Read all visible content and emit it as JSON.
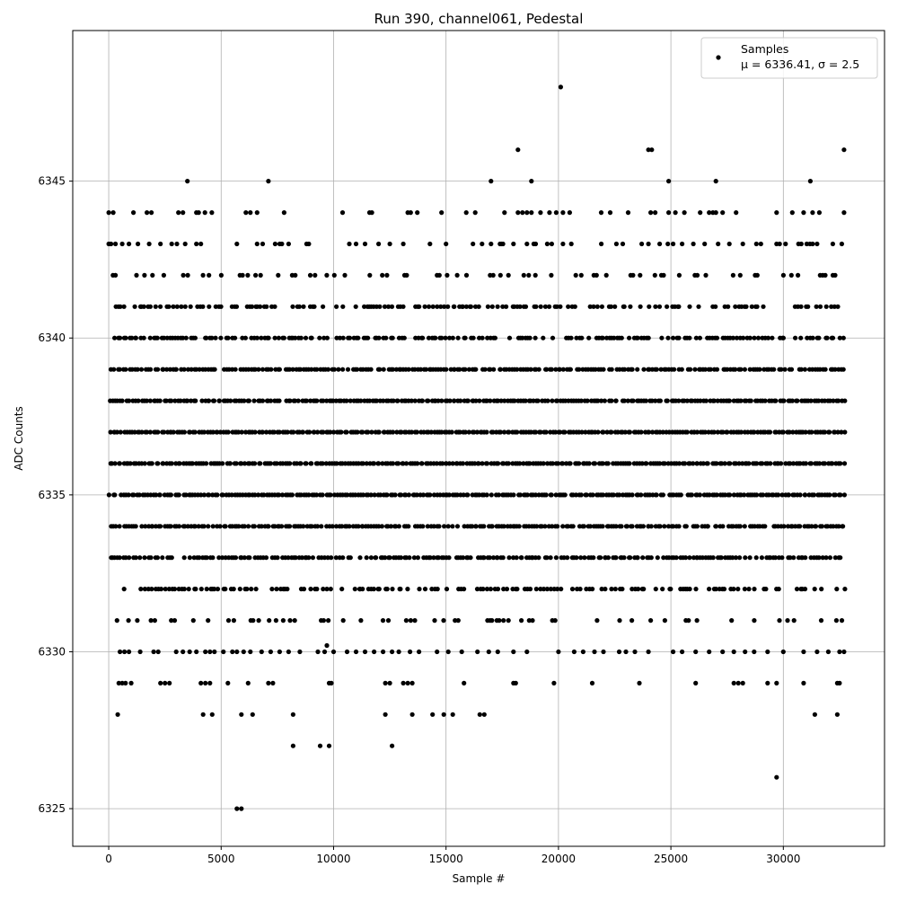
{
  "chart_data": {
    "type": "scatter",
    "title": "Run 390, channel061, Pedestal",
    "xlabel": "Sample #",
    "ylabel": "ADC Counts",
    "xlim": [
      -1600,
      34500
    ],
    "ylim": [
      6323.8,
      6349.8
    ],
    "xticks": [
      0,
      5000,
      10000,
      15000,
      20000,
      25000,
      30000
    ],
    "yticks": [
      6325,
      6330,
      6335,
      6340,
      6345
    ],
    "xtick_labels": [
      "0",
      "5000",
      "10000",
      "15000",
      "20000",
      "25000",
      "30000"
    ],
    "ytick_labels": [
      "6325",
      "6330",
      "6335",
      "6340",
      "6345"
    ],
    "grid": true,
    "legend_position": "top-right",
    "legend": {
      "label": "Samples",
      "stats": "μ = 6336.41, σ = 2.5"
    },
    "marker_color": "#000000",
    "sample_count": 32768,
    "level_coverage": [
      {
        "value": 6331,
        "density": 0.22
      },
      {
        "value": 6332,
        "density": 0.55
      },
      {
        "value": 6333,
        "density": 0.8
      },
      {
        "value": 6334,
        "density": 0.92
      },
      {
        "value": 6335,
        "density": 0.97
      },
      {
        "value": 6336,
        "density": 1.0
      },
      {
        "value": 6337,
        "density": 1.0
      },
      {
        "value": 6338,
        "density": 0.97
      },
      {
        "value": 6339,
        "density": 0.88
      },
      {
        "value": 6340,
        "density": 0.72
      },
      {
        "value": 6341,
        "density": 0.5
      },
      {
        "value": 6342,
        "density": 0.28
      },
      {
        "value": 6343,
        "density": 0.06
      },
      {
        "value": 6344,
        "density": 0.04
      }
    ],
    "series": [
      {
        "name": "Samples",
        "points": [
          [
            3500,
            6345
          ],
          [
            7100,
            6345
          ],
          [
            17000,
            6345
          ],
          [
            18800,
            6345
          ],
          [
            24900,
            6345
          ],
          [
            27000,
            6345
          ],
          [
            31200,
            6345
          ],
          [
            18200,
            6346
          ],
          [
            24000,
            6346
          ],
          [
            24150,
            6346
          ],
          [
            32700,
            6346
          ],
          [
            20100,
            6348
          ],
          [
            9700,
            6330.2
          ],
          [
            5900,
            6325
          ],
          [
            5700,
            6325
          ],
          [
            29700,
            6326
          ],
          [
            8200,
            6327
          ],
          [
            9400,
            6327
          ],
          [
            9800,
            6327
          ],
          [
            12600,
            6327
          ],
          [
            400,
            6328
          ],
          [
            4200,
            6328
          ],
          [
            4600,
            6328
          ],
          [
            5900,
            6328
          ],
          [
            6400,
            6328
          ],
          [
            8200,
            6328
          ],
          [
            12300,
            6328
          ],
          [
            13500,
            6328
          ],
          [
            14400,
            6328
          ],
          [
            14900,
            6328
          ],
          [
            15300,
            6328
          ],
          [
            16500,
            6328
          ],
          [
            16700,
            6328
          ],
          [
            31400,
            6328
          ],
          [
            32400,
            6328
          ],
          [
            450,
            6329
          ],
          [
            600,
            6329
          ],
          [
            750,
            6329
          ],
          [
            1000,
            6329
          ],
          [
            2300,
            6329
          ],
          [
            2500,
            6329
          ],
          [
            2700,
            6329
          ],
          [
            4100,
            6329
          ],
          [
            4300,
            6329
          ],
          [
            4500,
            6329
          ],
          [
            5300,
            6329
          ],
          [
            6200,
            6329
          ],
          [
            7100,
            6329
          ],
          [
            7300,
            6329
          ],
          [
            9800,
            6329
          ],
          [
            9900,
            6329
          ],
          [
            12300,
            6329
          ],
          [
            12500,
            6329
          ],
          [
            13100,
            6329
          ],
          [
            13300,
            6329
          ],
          [
            13500,
            6329
          ],
          [
            15800,
            6329
          ],
          [
            18000,
            6329
          ],
          [
            18100,
            6329
          ],
          [
            19800,
            6329
          ],
          [
            21500,
            6329
          ],
          [
            23600,
            6329
          ],
          [
            26100,
            6329
          ],
          [
            27800,
            6329
          ],
          [
            28000,
            6329
          ],
          [
            28200,
            6329
          ],
          [
            29300,
            6329
          ],
          [
            29700,
            6329
          ],
          [
            30900,
            6329
          ],
          [
            32400,
            6329
          ],
          [
            32500,
            6329
          ],
          [
            500,
            6330
          ],
          [
            700,
            6330
          ],
          [
            900,
            6330
          ],
          [
            1400,
            6330
          ],
          [
            2000,
            6330
          ],
          [
            2200,
            6330
          ],
          [
            3000,
            6330
          ],
          [
            3300,
            6330
          ],
          [
            3600,
            6330
          ],
          [
            3900,
            6330
          ],
          [
            4300,
            6330
          ],
          [
            4500,
            6330
          ],
          [
            4700,
            6330
          ],
          [
            5100,
            6330
          ],
          [
            5500,
            6330
          ],
          [
            5700,
            6330
          ],
          [
            6000,
            6330
          ],
          [
            6300,
            6330
          ],
          [
            6800,
            6330
          ],
          [
            7200,
            6330
          ],
          [
            7600,
            6330
          ],
          [
            8000,
            6330
          ],
          [
            8500,
            6330
          ],
          [
            9300,
            6330
          ],
          [
            9600,
            6330
          ],
          [
            10000,
            6330
          ],
          [
            10600,
            6330
          ],
          [
            11000,
            6330
          ],
          [
            11400,
            6330
          ],
          [
            11800,
            6330
          ],
          [
            12200,
            6330
          ],
          [
            12600,
            6330
          ],
          [
            12900,
            6330
          ],
          [
            13400,
            6330
          ],
          [
            13800,
            6330
          ],
          [
            14600,
            6330
          ],
          [
            15100,
            6330
          ],
          [
            15700,
            6330
          ],
          [
            16400,
            6330
          ],
          [
            16900,
            6330
          ],
          [
            17300,
            6330
          ],
          [
            18000,
            6330
          ],
          [
            18600,
            6330
          ],
          [
            20000,
            6330
          ],
          [
            20700,
            6330
          ],
          [
            21100,
            6330
          ],
          [
            21600,
            6330
          ],
          [
            22000,
            6330
          ],
          [
            22700,
            6330
          ],
          [
            23000,
            6330
          ],
          [
            23400,
            6330
          ],
          [
            24000,
            6330
          ],
          [
            25100,
            6330
          ],
          [
            25500,
            6330
          ],
          [
            26100,
            6330
          ],
          [
            26700,
            6330
          ],
          [
            27300,
            6330
          ],
          [
            27800,
            6330
          ],
          [
            28300,
            6330
          ],
          [
            28700,
            6330
          ],
          [
            29300,
            6330
          ],
          [
            30000,
            6330
          ],
          [
            30900,
            6330
          ],
          [
            31500,
            6330
          ],
          [
            32000,
            6330
          ],
          [
            32500,
            6330
          ],
          [
            32700,
            6330
          ],
          [
            0,
            6343
          ],
          [
            100,
            6343
          ],
          [
            300,
            6343
          ],
          [
            600,
            6343
          ],
          [
            900,
            6343
          ],
          [
            1300,
            6343
          ],
          [
            1800,
            6343
          ],
          [
            2300,
            6343
          ],
          [
            2800,
            6343
          ],
          [
            3400,
            6343
          ],
          [
            3900,
            6343
          ],
          [
            4100,
            6343
          ],
          [
            5700,
            6343
          ],
          [
            6600,
            6343
          ],
          [
            7400,
            6343
          ],
          [
            7700,
            6343
          ],
          [
            8000,
            6343
          ],
          [
            8800,
            6343
          ],
          [
            8900,
            6343
          ],
          [
            10700,
            6343
          ],
          [
            11000,
            6343
          ],
          [
            11400,
            6343
          ],
          [
            12000,
            6343
          ],
          [
            12500,
            6343
          ],
          [
            13100,
            6343
          ],
          [
            15000,
            6343
          ],
          [
            16200,
            6343
          ],
          [
            16600,
            6343
          ],
          [
            17000,
            6343
          ],
          [
            17400,
            6343
          ],
          [
            18000,
            6343
          ],
          [
            18600,
            6343
          ],
          [
            18900,
            6343
          ],
          [
            19500,
            6343
          ],
          [
            19700,
            6343
          ],
          [
            20200,
            6343
          ],
          [
            23700,
            6343
          ],
          [
            24000,
            6343
          ],
          [
            24500,
            6343
          ],
          [
            25100,
            6343
          ],
          [
            25500,
            6343
          ],
          [
            26000,
            6343
          ],
          [
            26500,
            6343
          ],
          [
            27100,
            6343
          ],
          [
            27600,
            6343
          ],
          [
            28200,
            6343
          ],
          [
            28800,
            6343
          ],
          [
            29000,
            6343
          ],
          [
            29700,
            6343
          ],
          [
            30100,
            6343
          ],
          [
            30800,
            6343
          ],
          [
            31300,
            6343
          ],
          [
            31500,
            6343
          ],
          [
            32200,
            6343
          ],
          [
            32600,
            6343
          ],
          [
            0,
            6344
          ],
          [
            200,
            6344
          ],
          [
            1100,
            6344
          ],
          [
            1700,
            6344
          ],
          [
            1900,
            6344
          ],
          [
            3100,
            6344
          ],
          [
            3300,
            6344
          ],
          [
            3900,
            6344
          ],
          [
            4000,
            6344
          ],
          [
            6100,
            6344
          ],
          [
            6300,
            6344
          ],
          [
            6600,
            6344
          ],
          [
            7800,
            6344
          ],
          [
            10400,
            6344
          ],
          [
            11600,
            6344
          ],
          [
            11700,
            6344
          ],
          [
            13300,
            6344
          ],
          [
            14800,
            6344
          ],
          [
            15900,
            6344
          ],
          [
            16300,
            6344
          ],
          [
            17600,
            6344
          ],
          [
            18200,
            6344
          ],
          [
            18400,
            6344
          ],
          [
            18600,
            6344
          ],
          [
            18800,
            6344
          ],
          [
            19200,
            6344
          ],
          [
            19600,
            6344
          ],
          [
            19900,
            6344
          ],
          [
            20200,
            6344
          ],
          [
            20500,
            6344
          ],
          [
            21900,
            6344
          ],
          [
            22300,
            6344
          ],
          [
            23100,
            6344
          ],
          [
            24100,
            6344
          ],
          [
            24300,
            6344
          ],
          [
            24900,
            6344
          ],
          [
            25200,
            6344
          ],
          [
            25600,
            6344
          ],
          [
            26300,
            6344
          ],
          [
            26700,
            6344
          ],
          [
            27000,
            6344
          ],
          [
            27300,
            6344
          ],
          [
            27900,
            6344
          ],
          [
            29700,
            6344
          ],
          [
            30400,
            6344
          ],
          [
            30900,
            6344
          ],
          [
            31300,
            6344
          ],
          [
            31600,
            6344
          ],
          [
            32700,
            6344
          ]
        ]
      }
    ]
  }
}
